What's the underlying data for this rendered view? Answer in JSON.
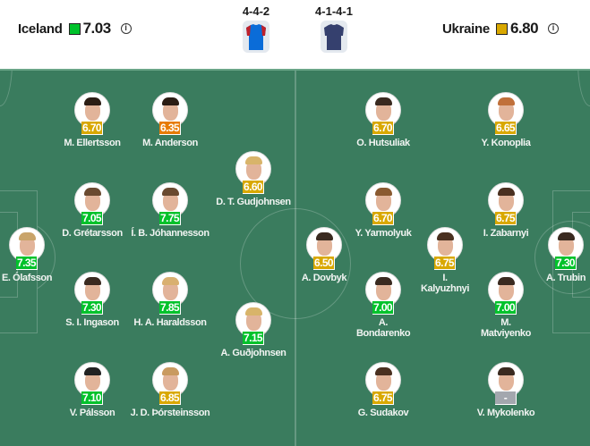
{
  "home": {
    "name": "Iceland",
    "rating": "7.03",
    "rating_color": "#00c22b",
    "formation": "4-4-2",
    "shirt_colors": [
      "#0a6cd8",
      "#c0202a"
    ]
  },
  "away": {
    "name": "Ukraine",
    "rating": "6.80",
    "rating_color": "#d9a800",
    "formation": "4-1-4-1",
    "shirt_colors": [
      "#35406e",
      "#35406e"
    ]
  },
  "rating_colors": {
    "green": "#00c22b",
    "yellow": "#d9a800",
    "orange": "#e77b05",
    "none": "#a3a7ae"
  },
  "players": [
    {
      "name": "M. Ellertsson",
      "rating": "6.70",
      "color": "yellow"
    },
    {
      "name": "M. Anderson",
      "rating": "6.35",
      "color": "orange"
    },
    {
      "name": "D. T. Gudjohnsen",
      "rating": "6.60",
      "color": "yellow"
    },
    {
      "name": "D. Grétarsson",
      "rating": "7.05",
      "color": "green"
    },
    {
      "name": "Í. B. Jóhannesson",
      "rating": "7.75",
      "color": "green"
    },
    {
      "name": "E. Ólafsson",
      "rating": "7.35",
      "color": "green"
    },
    {
      "name": "S. I. Ingason",
      "rating": "7.30",
      "color": "green"
    },
    {
      "name": "H. A. Haraldsson",
      "rating": "7.85",
      "color": "green"
    },
    {
      "name": "A. Guðjohnsen",
      "rating": "7.15",
      "color": "green"
    },
    {
      "name": "V. Pálsson",
      "rating": "7.10",
      "color": "green"
    },
    {
      "name": "J. D. Þórsteinsson",
      "rating": "6.85",
      "color": "yellow"
    },
    {
      "name": "O. Hutsuliak",
      "rating": "6.70",
      "color": "yellow"
    },
    {
      "name": "Y. Konoplia",
      "rating": "6.65",
      "color": "yellow"
    },
    {
      "name": "Y. Yarmolyuk",
      "rating": "6.70",
      "color": "yellow"
    },
    {
      "name": "I. Zabarnyi",
      "rating": "6.75",
      "color": "yellow"
    },
    {
      "name": "A. Dovbyk",
      "rating": "6.50",
      "color": "yellow"
    },
    {
      "name": "I. Kalyuzhnyi",
      "rating": "6.75",
      "color": "yellow"
    },
    {
      "name": "A. Trubin",
      "rating": "7.30",
      "color": "green"
    },
    {
      "name": "A. Bondarenko",
      "rating": "7.00",
      "color": "green"
    },
    {
      "name": "M. Matviyenko",
      "rating": "7.00",
      "color": "green"
    },
    {
      "name": "G. Sudakov",
      "rating": "6.75",
      "color": "yellow"
    },
    {
      "name": "V. Mykolenko",
      "rating": "-",
      "color": "none"
    }
  ]
}
